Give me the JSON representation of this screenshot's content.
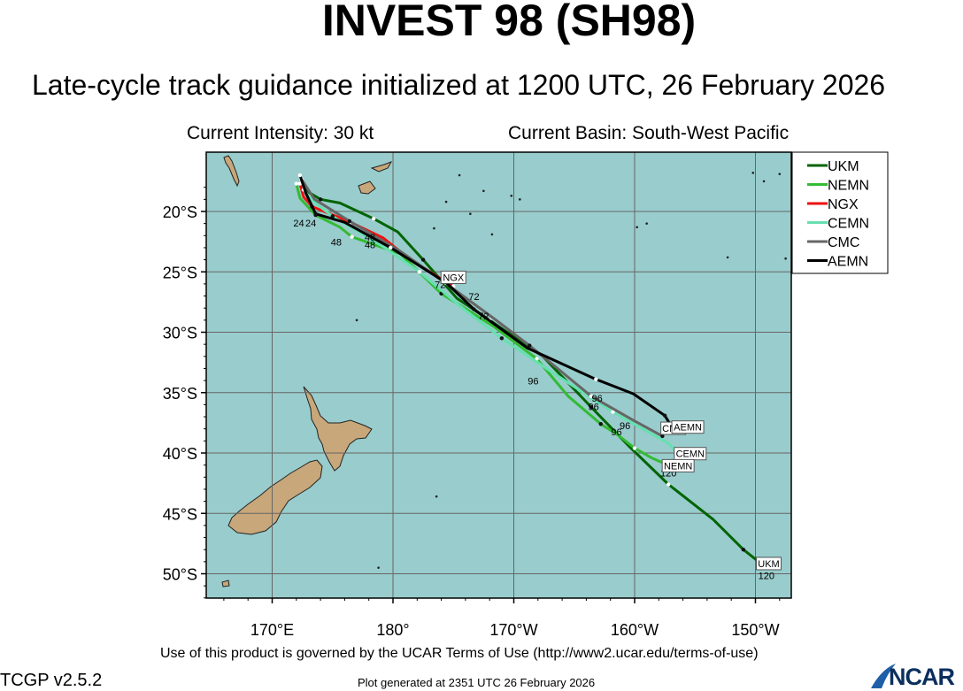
{
  "title": "INVEST 98 (SH98)",
  "subtitle": "Late-cycle track guidance initialized at 1200 UTC, 26 February 2026",
  "current_intensity": "Current Intensity: 30 kt",
  "current_basin": "Current Basin: South-West Pacific",
  "terms_text": "Use of this product is governed by the UCAR Terms of Use (http://www2.ucar.edu/terms-of-use)",
  "version_text": "TCGP v2.5.2",
  "generated_text": "Plot generated at 2351 UTC   26 February 2026",
  "logo_text": "NCAR",
  "map": {
    "ocean_color": "#99cccc",
    "land_color": "#c8a77a",
    "lat_labels": [
      "20°S",
      "25°S",
      "30°S",
      "35°S",
      "40°S",
      "45°S",
      "50°S"
    ],
    "lon_labels": [
      "170°E",
      "180°",
      "170°W",
      "160°W",
      "150°W"
    ],
    "lat_values": [
      -20,
      -25,
      -30,
      -35,
      -40,
      -45,
      -50
    ],
    "lon_values": [
      170,
      180,
      190,
      200,
      210
    ]
  },
  "legend": [
    {
      "name": "UKM",
      "color": "#006400"
    },
    {
      "name": "NEMN",
      "color": "#33bb33"
    },
    {
      "name": "NGX",
      "color": "#ee1111"
    },
    {
      "name": "CEMN",
      "color": "#66e0b0"
    },
    {
      "name": "CMC",
      "color": "#666666"
    },
    {
      "name": "AEMN",
      "color": "#000000"
    }
  ],
  "tracks": [
    {
      "model": "UKM",
      "color": "#006400",
      "end_label": "UKM",
      "end_hour": "120",
      "points": [
        [
          -17.5,
          172.5
        ],
        [
          -18.4,
          173.0
        ],
        [
          -19.0,
          174.0
        ],
        [
          -19.3,
          175.6
        ],
        [
          -20.6,
          178.4
        ],
        [
          -21.7,
          180.4
        ],
        [
          -24.0,
          182.5
        ],
        [
          -27.2,
          185.3
        ],
        [
          -29.0,
          188.0
        ],
        [
          -32.0,
          192.4
        ],
        [
          -36.2,
          196.4
        ],
        [
          -39.5,
          199.6
        ],
        [
          -42.6,
          202.8
        ],
        [
          -45.5,
          206.5
        ],
        [
          -48.0,
          209.0
        ],
        [
          -49.5,
          210.9
        ]
      ],
      "hour_labels": []
    },
    {
      "model": "NEMN",
      "color": "#33bb33",
      "end_label": "NEMN",
      "end_hour": "120",
      "points": [
        [
          -17.7,
          172.0
        ],
        [
          -18.9,
          172.3
        ],
        [
          -20.3,
          173.6
        ],
        [
          -21.3,
          175.6
        ],
        [
          -22.1,
          176.6
        ],
        [
          -23.5,
          180.6
        ],
        [
          -26.8,
          184.0
        ],
        [
          -29.5,
          188.3
        ],
        [
          -32.2,
          191.9
        ],
        [
          -35.3,
          194.5
        ],
        [
          -37.6,
          197.2
        ],
        [
          -38.5,
          198.6
        ],
        [
          -39.6,
          200.0
        ],
        [
          -40.4,
          201.4
        ],
        [
          -41.0,
          202.8
        ]
      ],
      "hour_labels": [
        {
          "text": "48",
          "lat": -21.7,
          "lon": 178.1
        },
        {
          "text": "96",
          "lat": -35.7,
          "lon": 196.6
        }
      ]
    },
    {
      "model": "NGX",
      "color": "#ee1111",
      "end_label": "NGX",
      "end_hour": "",
      "points": [
        [
          -17.7,
          172.3
        ],
        [
          -18.8,
          172.6
        ],
        [
          -19.6,
          173.3
        ],
        [
          -20.2,
          174.8
        ],
        [
          -20.9,
          176.5
        ],
        [
          -22.2,
          179.2
        ],
        [
          -23.8,
          181.2
        ],
        [
          -25.6,
          184.0
        ],
        [
          -26.2,
          185.0
        ]
      ],
      "hour_labels": []
    },
    {
      "model": "CEMN",
      "color": "#66e0b0",
      "end_label": "CEMN",
      "end_hour": "",
      "points": [
        [
          -18.2,
          172.6
        ],
        [
          -19.1,
          173.3
        ],
        [
          -20.4,
          175.0
        ],
        [
          -22.8,
          179.0
        ],
        [
          -25.0,
          182.2
        ],
        [
          -27.8,
          185.5
        ],
        [
          -30.5,
          189.0
        ],
        [
          -33.2,
          193.0
        ],
        [
          -36.6,
          198.2
        ],
        [
          -39.2,
          202.8
        ],
        [
          -40.3,
          203.8
        ]
      ],
      "hour_labels": [
        {
          "text": "96",
          "lat": -37.3,
          "lon": 199.2
        }
      ]
    },
    {
      "model": "CMC",
      "color": "#666666",
      "end_label": "CMC",
      "end_hour": "",
      "points": [
        [
          -17.3,
          172.4
        ],
        [
          -19.0,
          173.5
        ],
        [
          -20.8,
          176.4
        ],
        [
          -23.3,
          180.6
        ],
        [
          -25.9,
          184.3
        ],
        [
          -28.9,
          188.4
        ],
        [
          -31.1,
          191.3
        ],
        [
          -33.4,
          194.1
        ],
        [
          -35.3,
          196.4
        ],
        [
          -37.3,
          199.9
        ],
        [
          -38.6,
          202.3
        ]
      ],
      "hour_labels": [
        {
          "text": "96",
          "lat": -35.0,
          "lon": 196.9
        }
      ]
    },
    {
      "model": "AEMN",
      "color": "#000000",
      "end_label": "AEMN",
      "end_hour": "",
      "points": [
        [
          -17.0,
          172.3
        ],
        [
          -18.5,
          172.8
        ],
        [
          -20.2,
          173.6
        ],
        [
          -20.9,
          176.0
        ],
        [
          -23.0,
          179.8
        ],
        [
          -25.9,
          184.4
        ],
        [
          -28.1,
          186.7
        ],
        [
          -31.3,
          191.1
        ],
        [
          -33.9,
          196.8
        ],
        [
          -35.1,
          199.9
        ],
        [
          -36.9,
          202.5
        ],
        [
          -38.2,
          203.3
        ]
      ],
      "hour_labels": [
        {
          "text": "72",
          "lat": -25.6,
          "lon": 183.9
        },
        {
          "text": "96",
          "lat": -33.6,
          "lon": 191.6
        }
      ]
    }
  ],
  "extra_labels": [
    {
      "text": "24",
      "lat": -20.5,
      "lon": 172.2
    },
    {
      "text": "24",
      "lat": -20.5,
      "lon": 173.2
    },
    {
      "text": "48",
      "lat": -22.1,
      "lon": 175.3
    },
    {
      "text": "48",
      "lat": -22.3,
      "lon": 178.1
    },
    {
      "text": "72",
      "lat": -26.6,
      "lon": 186.7
    },
    {
      "text": "72",
      "lat": -28.2,
      "lon": 187.5
    },
    {
      "text": "96",
      "lat": -37.8,
      "lon": 198.5
    }
  ],
  "label_boxes": [
    {
      "text": "UKM",
      "lat": -49.3,
      "lon": 211.1
    },
    {
      "text": "NGX",
      "lat": -25.6,
      "lon": 185.0
    },
    {
      "text": "CMC",
      "lat": -38.1,
      "lon": 203.2
    },
    {
      "text": "AEMN",
      "lat": -38.0,
      "lon": 204.4
    },
    {
      "text": "CEMN",
      "lat": -40.2,
      "lon": 204.6
    },
    {
      "text": "NEMN",
      "lat": -41.2,
      "lon": 203.6
    }
  ]
}
